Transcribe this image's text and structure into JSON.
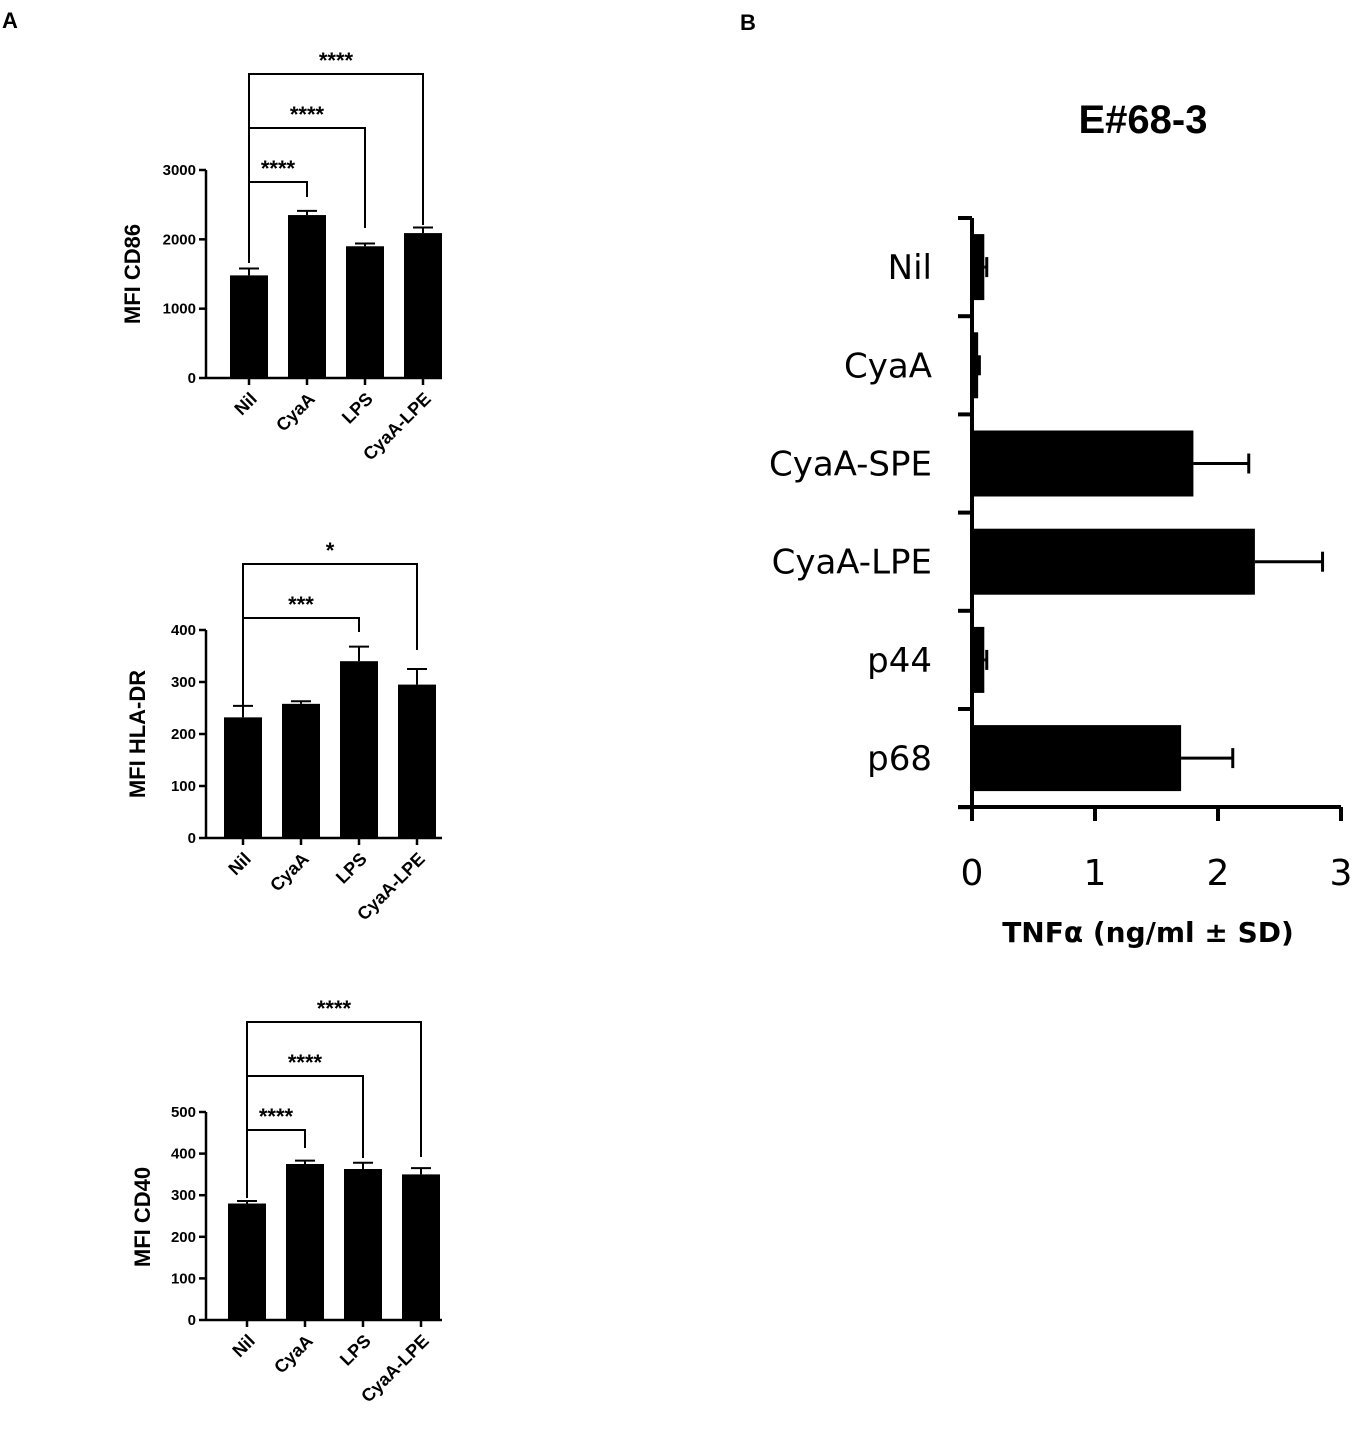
{
  "panels": {
    "a_label": "A",
    "b_label": "B"
  },
  "chart_data": [
    {
      "type": "bar",
      "panel": "A",
      "ylabel": "MFI CD86",
      "categories": [
        "Nil",
        "CyaA",
        "LPS",
        "CyaA-LPE"
      ],
      "values": [
        1480,
        2350,
        1900,
        2090
      ],
      "errors": [
        100,
        60,
        40,
        80
      ],
      "ylim": [
        0,
        3000
      ],
      "yticks": [
        0,
        1000,
        2000,
        3000
      ],
      "significance": [
        {
          "from": "Nil",
          "to": "CyaA",
          "label": "****"
        },
        {
          "from": "Nil",
          "to": "LPS",
          "label": "****"
        },
        {
          "from": "Nil",
          "to": "CyaA-LPE",
          "label": "****"
        }
      ]
    },
    {
      "type": "bar",
      "panel": "A",
      "ylabel": "MFI HLA-DR",
      "categories": [
        "Nil",
        "CyaA",
        "LPS",
        "CyaA-LPE"
      ],
      "values": [
        232,
        258,
        340,
        295
      ],
      "errors": [
        22,
        5,
        28,
        30
      ],
      "ylim": [
        0,
        400
      ],
      "yticks": [
        0,
        100,
        200,
        300,
        400
      ],
      "significance": [
        {
          "from": "Nil",
          "to": "LPS",
          "label": "***"
        },
        {
          "from": "Nil",
          "to": "CyaA-LPE",
          "label": "*"
        }
      ]
    },
    {
      "type": "bar",
      "panel": "A",
      "ylabel": "MFI CD40",
      "categories": [
        "Nil",
        "CyaA",
        "LPS",
        "CyaA-LPE"
      ],
      "values": [
        280,
        375,
        363,
        350
      ],
      "errors": [
        6,
        8,
        15,
        15
      ],
      "ylim": [
        0,
        500
      ],
      "yticks": [
        0,
        100,
        200,
        300,
        400,
        500
      ],
      "significance": [
        {
          "from": "Nil",
          "to": "CyaA",
          "label": "****"
        },
        {
          "from": "Nil",
          "to": "LPS",
          "label": "****"
        },
        {
          "from": "Nil",
          "to": "CyaA-LPE",
          "label": "****"
        }
      ]
    },
    {
      "type": "bar",
      "panel": "B",
      "orientation": "horizontal",
      "title": "E#68-3",
      "xlabel": "TNFα (ng/ml ± SD)",
      "categories": [
        "Nil",
        "CyaA",
        "CyaA-SPE",
        "CyaA-LPE",
        "p44",
        "p68"
      ],
      "values": [
        0.1,
        0.05,
        1.8,
        2.3,
        0.1,
        1.7
      ],
      "errors": [
        0.02,
        0.01,
        0.45,
        0.55,
        0.02,
        0.42
      ],
      "xlim": [
        0,
        3
      ],
      "xticks": [
        0,
        1,
        2,
        3
      ]
    }
  ]
}
